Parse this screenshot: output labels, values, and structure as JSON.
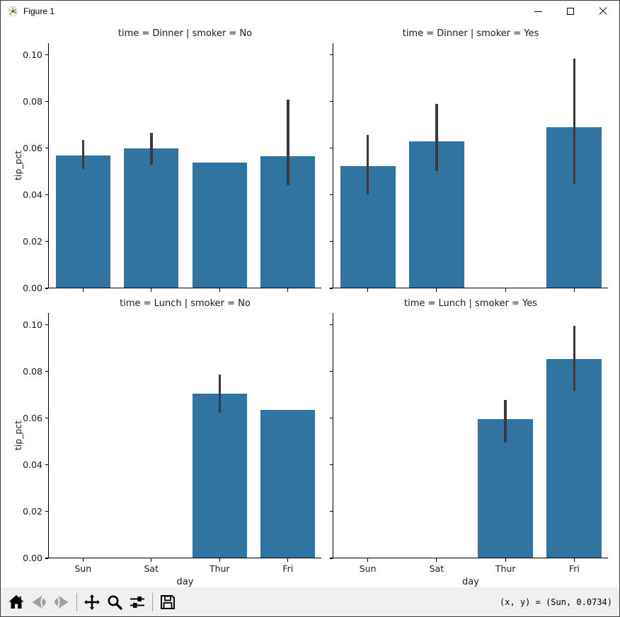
{
  "window": {
    "title": "Figure 1"
  },
  "toolbar": {
    "buttons": [
      {
        "id": "home",
        "icon": "home-icon",
        "disabled": false
      },
      {
        "id": "back",
        "icon": "back-arrow-icon",
        "disabled": true
      },
      {
        "id": "forward",
        "icon": "forward-arrow-icon",
        "disabled": true
      },
      {
        "id": "pan",
        "icon": "pan-arrows-icon",
        "disabled": false
      },
      {
        "id": "zoom",
        "icon": "magnifier-icon",
        "disabled": false
      },
      {
        "id": "subplots",
        "icon": "sliders-icon",
        "disabled": false
      },
      {
        "id": "save",
        "icon": "floppy-disk-icon",
        "disabled": false
      }
    ],
    "status": "(x, y) = (Sun, 0.0734)"
  },
  "chart_data": {
    "type": "bar",
    "categories": [
      "Sun",
      "Sat",
      "Thur",
      "Fri"
    ],
    "xlabel": "day",
    "ylabel": "tip_pct",
    "ylim": [
      0,
      0.105
    ],
    "yticks": [
      0,
      0.02,
      0.04,
      0.06,
      0.08,
      0.1
    ],
    "ytick_labels": [
      "0.00",
      "0.02",
      "0.04",
      "0.06",
      "0.08",
      "0.10"
    ],
    "bar_color": "#3274a1",
    "error_color": "#3a3a3a",
    "grid": false,
    "legend": null,
    "subplots": [
      {
        "title": "time = Dinner | smoker = No",
        "row": 0,
        "col": 0,
        "values": [
          0.0567,
          0.0597,
          0.0536,
          0.0564
        ],
        "errors": [
          [
            0.0511,
            0.0634
          ],
          [
            0.0528,
            0.0667
          ],
          null,
          [
            0.0442,
            0.0807
          ]
        ]
      },
      {
        "title": "time = Dinner | smoker = Yes",
        "row": 0,
        "col": 1,
        "values": [
          0.0519,
          0.0625,
          null,
          0.0688
        ],
        "errors": [
          [
            0.0403,
            0.0658
          ],
          [
            0.0503,
            0.0791
          ],
          null,
          [
            0.0445,
            0.0984
          ]
        ]
      },
      {
        "title": "time = Lunch | smoker = No",
        "row": 1,
        "col": 0,
        "values": [
          null,
          null,
          0.0702,
          0.0631
        ],
        "errors": [
          null,
          null,
          [
            0.0622,
            0.0786
          ],
          null
        ]
      },
      {
        "title": "time = Lunch | smoker = Yes",
        "row": 1,
        "col": 1,
        "values": [
          null,
          null,
          0.0593,
          0.0849
        ],
        "errors": [
          null,
          null,
          [
            0.0495,
            0.0678
          ],
          [
            0.0718,
            0.0997
          ]
        ]
      }
    ]
  }
}
